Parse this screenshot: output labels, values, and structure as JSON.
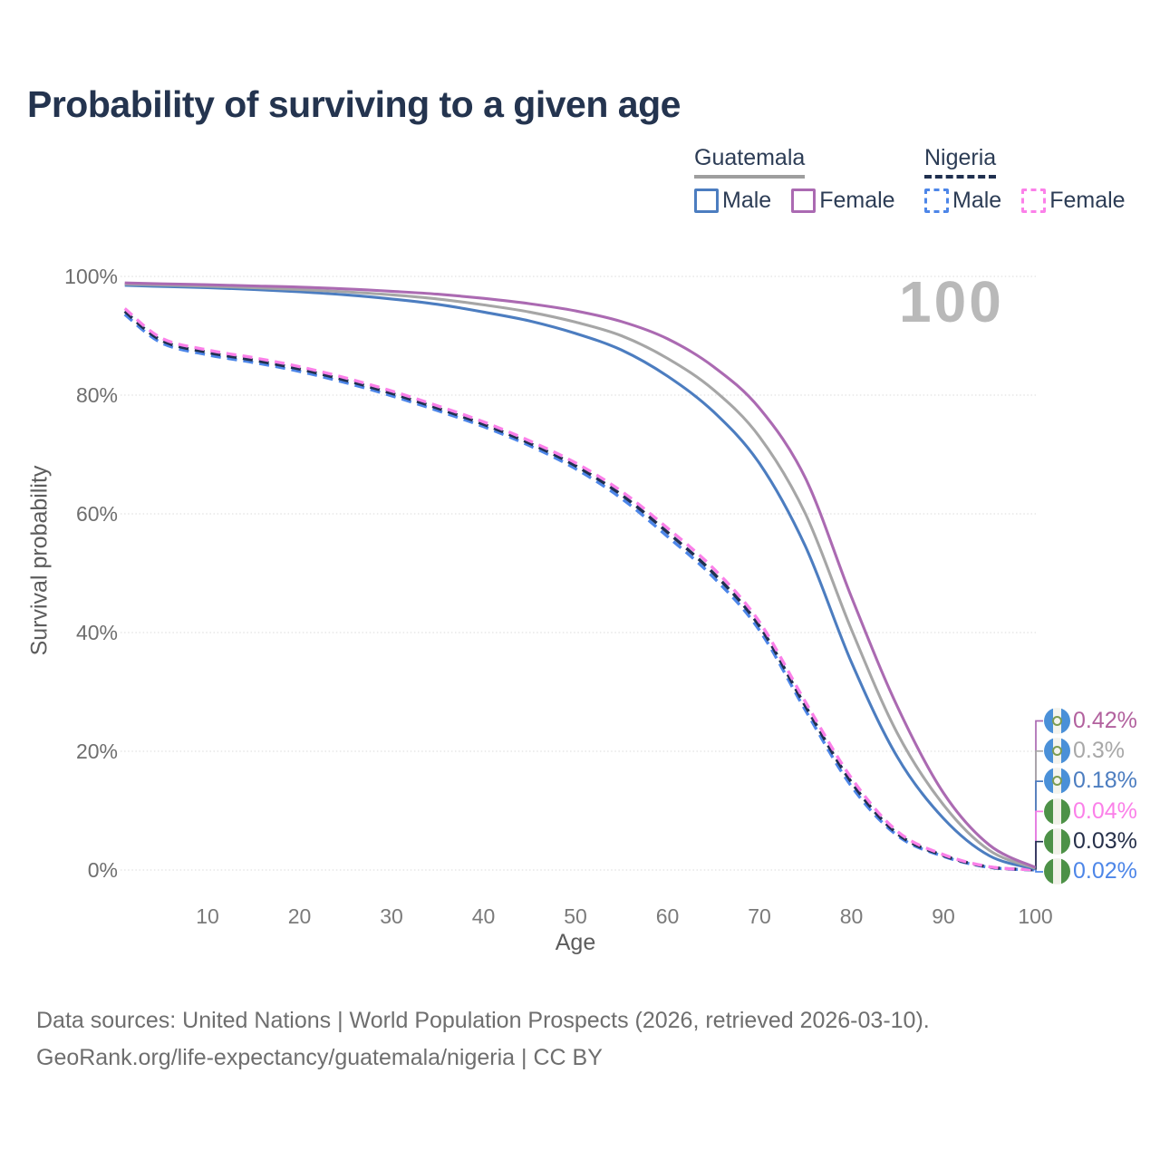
{
  "title": "Probability of surviving to a given age",
  "legend": {
    "groups": [
      {
        "name": "Guatemala",
        "line_style": "solid",
        "underline_color": "#9e9e9e",
        "items": [
          {
            "label": "Male",
            "color": "#4c7dc0",
            "dashed": false
          },
          {
            "label": "Female",
            "color": "#ab6ab2",
            "dashed": false
          }
        ]
      },
      {
        "name": "Nigeria",
        "line_style": "dashed",
        "underline_color": "#20304f",
        "items": [
          {
            "label": "Male",
            "color": "#4d86e8",
            "dashed": true
          },
          {
            "label": "Female",
            "color": "#fb80e9",
            "dashed": true
          }
        ]
      }
    ]
  },
  "chart_data": {
    "type": "line",
    "title": "Probability of surviving to a given age",
    "xlabel": "Age",
    "ylabel": "Survival probability",
    "xlim": [
      0,
      100
    ],
    "ylim": [
      0,
      100
    ],
    "grid": "horizontal-dotted",
    "legend_position": "top-right",
    "watermark": "100",
    "xticks": [
      10,
      20,
      30,
      40,
      50,
      60,
      70,
      80,
      90,
      100
    ],
    "ytick_values": [
      0,
      20,
      40,
      60,
      80,
      100
    ],
    "ytick_labels": [
      "0%",
      "20%",
      "40%",
      "60%",
      "80%",
      "100%"
    ],
    "ages": [
      1,
      5,
      10,
      15,
      20,
      25,
      30,
      35,
      40,
      45,
      50,
      55,
      60,
      65,
      70,
      75,
      80,
      85,
      90,
      95,
      100
    ],
    "series": [
      {
        "name": "Guatemala Female",
        "country": "Guatemala",
        "sex": "Female",
        "line_style": "solid",
        "color": "#ab6ab2",
        "flag": "gt",
        "end_label": "0.42%",
        "label_color": "#b2619e",
        "values": [
          98.9,
          98.75,
          98.6,
          98.4,
          98.2,
          97.9,
          97.5,
          97.0,
          96.3,
          95.4,
          94.2,
          92.4,
          89.5,
          84.8,
          77.8,
          66.0,
          46.0,
          27.5,
          13.0,
          4.2,
          0.42
        ]
      },
      {
        "name": "Guatemala (both sexes)",
        "country": "Guatemala",
        "sex": "Both",
        "line_style": "solid",
        "color": "#a6a6a6",
        "flag": "gt",
        "end_label": "0.3%",
        "label_color": "#a8a8a8",
        "values": [
          98.7,
          98.55,
          98.35,
          98.1,
          97.8,
          97.4,
          96.9,
          96.2,
          95.2,
          94.0,
          92.3,
          90.0,
          86.2,
          80.9,
          73.0,
          60.0,
          40.5,
          23.0,
          11.0,
          3.3,
          0.3
        ]
      },
      {
        "name": "Guatemala Male",
        "country": "Guatemala",
        "sex": "Male",
        "line_style": "solid",
        "color": "#4c7dc0",
        "flag": "gt",
        "end_label": "0.18%",
        "label_color": "#4c7dc0",
        "values": [
          98.5,
          98.3,
          98.1,
          97.8,
          97.4,
          96.9,
          96.2,
          95.3,
          94.0,
          92.5,
          90.4,
          87.6,
          83.2,
          77.2,
          68.5,
          54.5,
          35.0,
          19.0,
          8.7,
          2.4,
          0.18
        ]
      },
      {
        "name": "Nigeria Female",
        "country": "Nigeria",
        "sex": "Female",
        "line_style": "dashed",
        "color": "#fb80e9",
        "flag": "ng",
        "end_label": "0.04%",
        "label_color": "#fb80e9",
        "values": [
          94.6,
          89.6,
          87.6,
          86.3,
          84.8,
          82.9,
          80.7,
          78.2,
          75.5,
          72.3,
          68.6,
          63.8,
          57.6,
          50.8,
          41.8,
          28.3,
          15.5,
          6.5,
          2.6,
          0.55,
          0.04
        ]
      },
      {
        "name": "Nigeria (both sexes)",
        "country": "Nigeria",
        "sex": "Both",
        "line_style": "dashed",
        "color": "#20304f",
        "flag": "ng",
        "end_label": "0.03%",
        "label_color": "#26304a",
        "values": [
          94.1,
          89.2,
          87.2,
          85.9,
          84.4,
          82.5,
          80.3,
          77.8,
          75.1,
          71.9,
          68.1,
          63.2,
          56.9,
          50.0,
          41.1,
          27.6,
          14.8,
          6.1,
          2.45,
          0.5,
          0.03
        ]
      },
      {
        "name": "Nigeria Male",
        "country": "Nigeria",
        "sex": "Male",
        "line_style": "dashed",
        "color": "#4d86e8",
        "flag": "ng",
        "end_label": "0.02%",
        "label_color": "#4d86e8",
        "values": [
          93.6,
          88.8,
          86.8,
          85.5,
          84.0,
          82.1,
          79.9,
          77.4,
          74.7,
          71.5,
          67.6,
          62.6,
          56.2,
          49.3,
          40.4,
          26.9,
          14.1,
          5.8,
          2.3,
          0.45,
          0.02
        ]
      }
    ]
  },
  "footer": {
    "line1": "Data sources: United Nations | World Population Prospects (2026, retrieved 2026-03-10).",
    "line2": "GeoRank.org/life-expectancy/guatemala/nigeria | CC BY"
  }
}
